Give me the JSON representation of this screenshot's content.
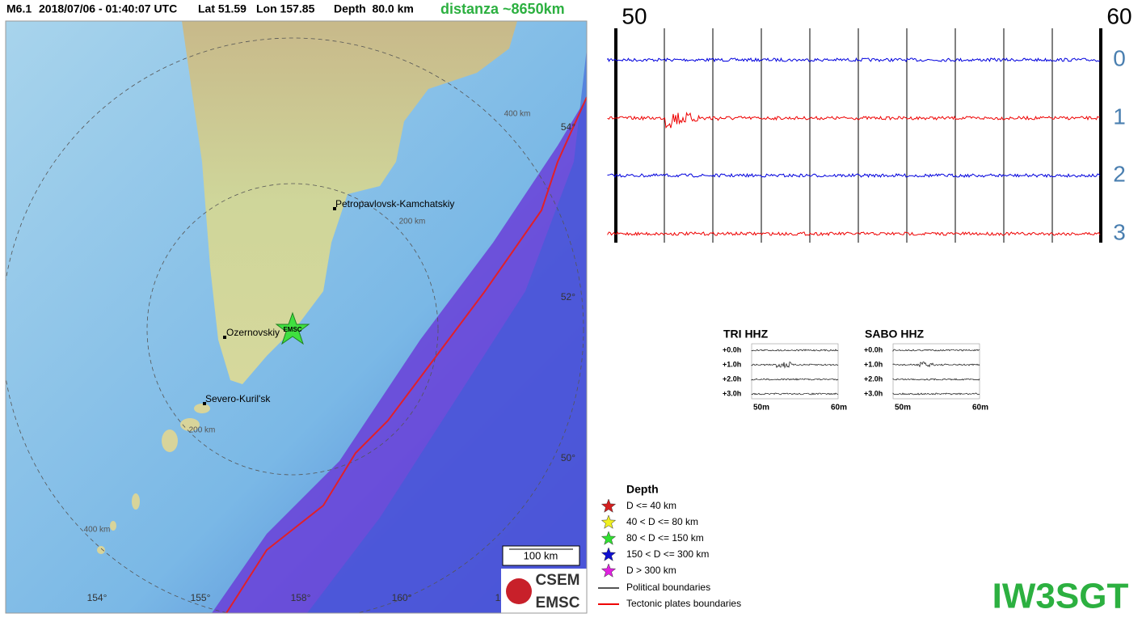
{
  "header": {
    "magnitude": "M6.1",
    "datetime": "2018/07/06 - 01:40:07 UTC",
    "lat": "Lat 51.59",
    "lon": "Lon 157.85",
    "depth": "Depth  80.0 km",
    "distance": "distanza ~8650km"
  },
  "map": {
    "labels": [
      "400 km",
      "Petropavlovsk-Kamchatskiy",
      "200 km",
      "Ozernovskiy",
      "Severo-Kuril'sk",
      "200 km",
      "400 km"
    ],
    "lat_labels": [
      "54°",
      "52°",
      "50°"
    ],
    "lon_labels": [
      "154°",
      "155°",
      "158°",
      "160°",
      "1"
    ],
    "event_marker": "EMSC",
    "scale": "100 km",
    "logo": [
      "CSEM",
      "EMSC"
    ]
  },
  "seismogram": {
    "start": "50",
    "end": "60",
    "channels": [
      "0",
      "1",
      "2",
      "3"
    ]
  },
  "helicorders": [
    {
      "title": "TRI HHZ",
      "rows": [
        "+0.0h",
        "+1.0h",
        "+2.0h",
        "+3.0h"
      ],
      "axis": [
        "50m",
        "60m"
      ]
    },
    {
      "title": "SABO HHZ",
      "rows": [
        "+0.0h",
        "+1.0h",
        "+2.0h",
        "+3.0h"
      ],
      "axis": [
        "50m",
        "60m"
      ]
    }
  ],
  "legend": {
    "title": "Depth",
    "items": [
      "D <= 40 km",
      "40 < D <= 80 km",
      "80 < D <= 150 km",
      "150 < D <= 300 km",
      "D > 300 km"
    ],
    "lines": [
      "Political boundaries",
      "Tectonic plates boundaries"
    ]
  },
  "callsign": "IW3SGT"
}
